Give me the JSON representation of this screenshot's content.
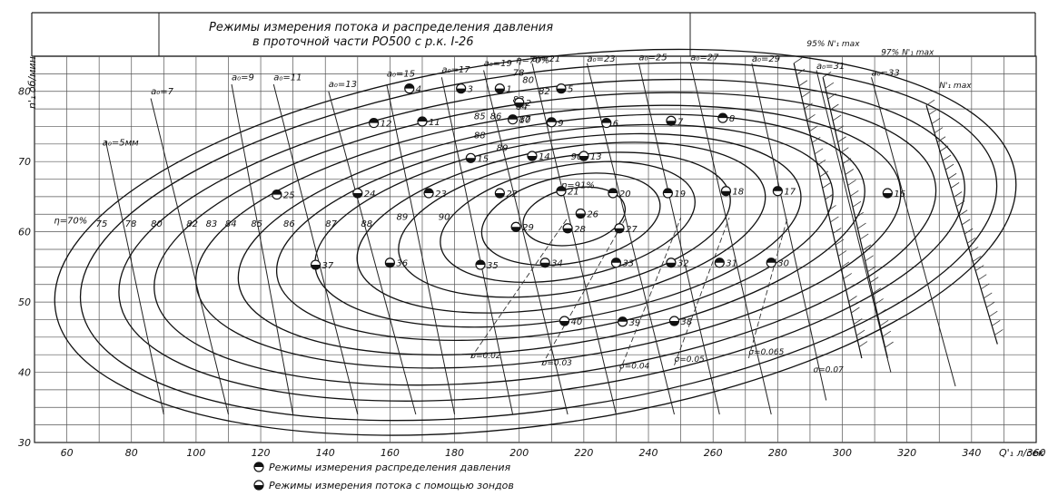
{
  "chart_data": {
    "type": "scatter",
    "title": "Режимы измерения потока и распределения давления",
    "subtitle": "в проточной части РО500 с р.к. I-26",
    "xlabel": "Q'₁ л/сек",
    "ylabel": "n'₁ об/мин",
    "xlim": [
      50,
      360
    ],
    "ylim": [
      30,
      85
    ],
    "x_ticks": [
      "60",
      "80",
      "100",
      "120",
      "140",
      "160",
      "180",
      "200",
      "220",
      "240",
      "260",
      "280",
      "300",
      "320",
      "340",
      "360"
    ],
    "y_ticks": [
      "30",
      "40",
      "50",
      "60",
      "70",
      "80"
    ],
    "grid": true,
    "efficiency_labels": [
      {
        "text": "η=70%",
        "x": 56,
        "y": 61.2
      },
      {
        "text": "75",
        "x": 69,
        "y": 60.7
      },
      {
        "text": "78",
        "x": 78,
        "y": 60.7
      },
      {
        "text": "80",
        "x": 86,
        "y": 60.7
      },
      {
        "text": "82",
        "x": 97,
        "y": 60.7
      },
      {
        "text": "83",
        "x": 103,
        "y": 60.7
      },
      {
        "text": "84",
        "x": 109,
        "y": 60.7
      },
      {
        "text": "85",
        "x": 117,
        "y": 60.7
      },
      {
        "text": "86",
        "x": 127,
        "y": 60.7
      },
      {
        "text": "87",
        "x": 140,
        "y": 60.7
      },
      {
        "text": "88",
        "x": 151,
        "y": 60.7
      },
      {
        "text": "89",
        "x": 162,
        "y": 61.7
      },
      {
        "text": "90",
        "x": 175,
        "y": 61.7
      },
      {
        "text": "η=70%",
        "x": 199,
        "y": 84
      },
      {
        "text": "78",
        "x": 198,
        "y": 82.2
      },
      {
        "text": "80",
        "x": 201,
        "y": 81.2
      },
      {
        "text": "82",
        "x": 206,
        "y": 79.6
      },
      {
        "text": "83",
        "x": 198,
        "y": 78.4
      },
      {
        "text": "84",
        "x": 199,
        "y": 77.4
      },
      {
        "text": "85",
        "x": 186,
        "y": 76
      },
      {
        "text": "86",
        "x": 191,
        "y": 76
      },
      {
        "text": "87",
        "x": 200,
        "y": 75.6
      },
      {
        "text": "88",
        "x": 186,
        "y": 73.3
      },
      {
        "text": "89",
        "x": 193,
        "y": 71.5
      },
      {
        "text": "90",
        "x": 216,
        "y": 70.3
      },
      {
        "text": "η=91%",
        "x": 213,
        "y": 66.2
      }
    ],
    "guide_vane_labels": [
      {
        "text": "a₀=5мм",
        "x": 71,
        "y": 72.3
      },
      {
        "text": "a₀=7",
        "x": 86,
        "y": 79.6
      },
      {
        "text": "a₀=9",
        "x": 111,
        "y": 81.6
      },
      {
        "text": "a₀=11",
        "x": 124,
        "y": 81.6
      },
      {
        "text": "a₀=13",
        "x": 141,
        "y": 80.6
      },
      {
        "text": "a₀=15",
        "x": 159,
        "y": 82.1
      },
      {
        "text": "a₀=17",
        "x": 176,
        "y": 82.7
      },
      {
        "text": "a₀=19",
        "x": 189,
        "y": 83.6
      },
      {
        "text": "a₀=21",
        "x": 204,
        "y": 84.2
      },
      {
        "text": "a₀=23",
        "x": 221,
        "y": 84.2
      },
      {
        "text": "a₀=25",
        "x": 237,
        "y": 84.4
      },
      {
        "text": "a₀=27",
        "x": 253,
        "y": 84.4
      },
      {
        "text": "a₀=29",
        "x": 272,
        "y": 84.2
      },
      {
        "text": "a₀=31",
        "x": 292,
        "y": 83.2
      },
      {
        "text": "a₀=33",
        "x": 309,
        "y": 82.2
      }
    ],
    "sigma_labels": [
      {
        "text": "σ=0.02",
        "x": 185,
        "y": 42
      },
      {
        "text": "σ=0.03",
        "x": 207,
        "y": 41
      },
      {
        "text": "σ=0.04",
        "x": 231,
        "y": 40.5
      },
      {
        "text": "σ=0.05",
        "x": 248,
        "y": 41.5
      },
      {
        "text": "σ=0.065",
        "x": 271,
        "y": 42.5
      },
      {
        "text": "σ=0.07",
        "x": 291,
        "y": 40
      }
    ],
    "power_limit_labels": [
      {
        "text": "95% N'₁ max",
        "x": 289,
        "y": 86.4
      },
      {
        "text": "97% N'₁ max",
        "x": 312,
        "y": 85.2
      },
      {
        "text": "N'₁ max",
        "x": 330,
        "y": 80.5
      }
    ],
    "points": [
      {
        "id": "1",
        "x": 194,
        "y": 80.4,
        "type": "flow"
      },
      {
        "id": "2",
        "x": 200,
        "y": 78.4,
        "type": "flow"
      },
      {
        "id": "3",
        "x": 182,
        "y": 80.4,
        "type": "flow"
      },
      {
        "id": "4",
        "x": 166,
        "y": 80.4,
        "type": "pressure"
      },
      {
        "id": "5",
        "x": 213,
        "y": 80.4,
        "type": "flow"
      },
      {
        "id": "6",
        "x": 227,
        "y": 75.5,
        "type": "pressure"
      },
      {
        "id": "7",
        "x": 247,
        "y": 75.8,
        "type": "flow"
      },
      {
        "id": "8",
        "x": 263,
        "y": 76.2,
        "type": "pressure"
      },
      {
        "id": "9",
        "x": 210,
        "y": 75.6,
        "type": "pressure"
      },
      {
        "id": "10",
        "x": 198,
        "y": 76,
        "type": "pressure"
      },
      {
        "id": "11",
        "x": 170,
        "y": 75.7,
        "type": "pressure"
      },
      {
        "id": "12",
        "x": 155,
        "y": 75.5,
        "type": "pressure"
      },
      {
        "id": "13",
        "x": 220,
        "y": 70.8,
        "type": "flow"
      },
      {
        "id": "14",
        "x": 204,
        "y": 70.8,
        "type": "flow"
      },
      {
        "id": "15",
        "x": 185,
        "y": 70.5,
        "type": "flow"
      },
      {
        "id": "16",
        "x": 314,
        "y": 65.5,
        "type": "flow"
      },
      {
        "id": "17",
        "x": 280,
        "y": 65.8,
        "type": "pressure"
      },
      {
        "id": "18",
        "x": 264,
        "y": 65.8,
        "type": "flow"
      },
      {
        "id": "19",
        "x": 246,
        "y": 65.5,
        "type": "pressure"
      },
      {
        "id": "20",
        "x": 229,
        "y": 65.5,
        "type": "pressure"
      },
      {
        "id": "21",
        "x": 213,
        "y": 65.8,
        "type": "pressure"
      },
      {
        "id": "22",
        "x": 194,
        "y": 65.5,
        "type": "flow"
      },
      {
        "id": "23",
        "x": 172,
        "y": 65.5,
        "type": "pressure"
      },
      {
        "id": "24",
        "x": 150,
        "y": 65.5,
        "type": "flow"
      },
      {
        "id": "25",
        "x": 125,
        "y": 65.3,
        "type": "pressure"
      },
      {
        "id": "26",
        "x": 219,
        "y": 62.6,
        "type": "flow"
      },
      {
        "id": "27",
        "x": 231,
        "y": 60.5,
        "type": "flow"
      },
      {
        "id": "28",
        "x": 215,
        "y": 60.5,
        "type": "flow"
      },
      {
        "id": "29",
        "x": 199,
        "y": 60.7,
        "type": "flow"
      },
      {
        "id": "30",
        "x": 278,
        "y": 55.6,
        "type": "pressure"
      },
      {
        "id": "31",
        "x": 262,
        "y": 55.6,
        "type": "pressure"
      },
      {
        "id": "32",
        "x": 247,
        "y": 55.6,
        "type": "flow"
      },
      {
        "id": "33",
        "x": 230,
        "y": 55.6,
        "type": "pressure"
      },
      {
        "id": "34",
        "x": 208,
        "y": 55.6,
        "type": "flow"
      },
      {
        "id": "35",
        "x": 188,
        "y": 55.3,
        "type": "pressure"
      },
      {
        "id": "36",
        "x": 160,
        "y": 55.6,
        "type": "flow"
      },
      {
        "id": "37",
        "x": 137,
        "y": 55.3,
        "type": "flow"
      },
      {
        "id": "38",
        "x": 248,
        "y": 47.3,
        "type": "flow"
      },
      {
        "id": "39",
        "x": 232,
        "y": 47.2,
        "type": "pressure"
      },
      {
        "id": "40",
        "x": 214,
        "y": 47.3,
        "type": "flow"
      }
    ]
  },
  "legend": {
    "pressure_label": "Режимы измерения распределения давления",
    "flow_label": "Режимы измерения потока с помощью зондов"
  }
}
